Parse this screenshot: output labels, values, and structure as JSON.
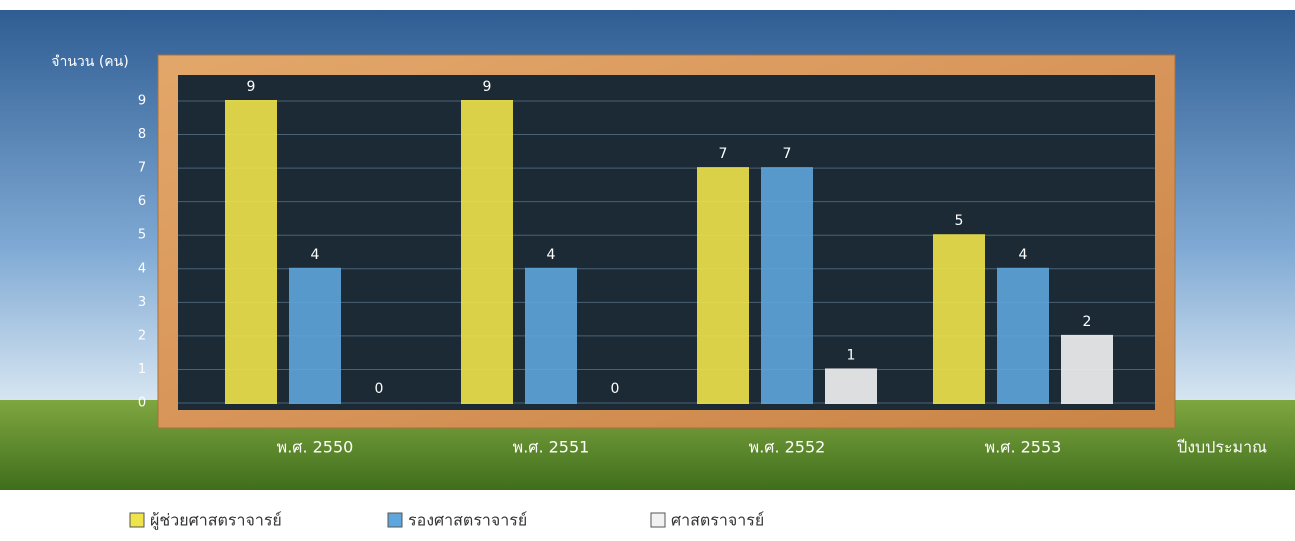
{
  "chart_data": {
    "type": "bar",
    "y_label": "จำนวน (คน)",
    "x_label": "ปีงบประมาณ",
    "categories": [
      "พ.ศ. 2550",
      "พ.ศ. 2551",
      "พ.ศ. 2552",
      "พ.ศ. 2553"
    ],
    "series": [
      {
        "name": "ผู้ช่วยศาสตราจารย์",
        "color": "#efe44a",
        "values": [
          9,
          9,
          7,
          5
        ]
      },
      {
        "name": "รองศาสตราจารย์",
        "color": "#5fa6dc",
        "values": [
          4,
          4,
          7,
          4
        ]
      },
      {
        "name": "ศาสตราจารย์",
        "color": "#f2f2f2",
        "values": [
          0,
          0,
          1,
          2
        ]
      }
    ],
    "ylim": [
      0,
      9
    ],
    "yticks": [
      0,
      1,
      2,
      3,
      4,
      5,
      6,
      7,
      8,
      9
    ],
    "grid": true,
    "legend": "bottom"
  }
}
